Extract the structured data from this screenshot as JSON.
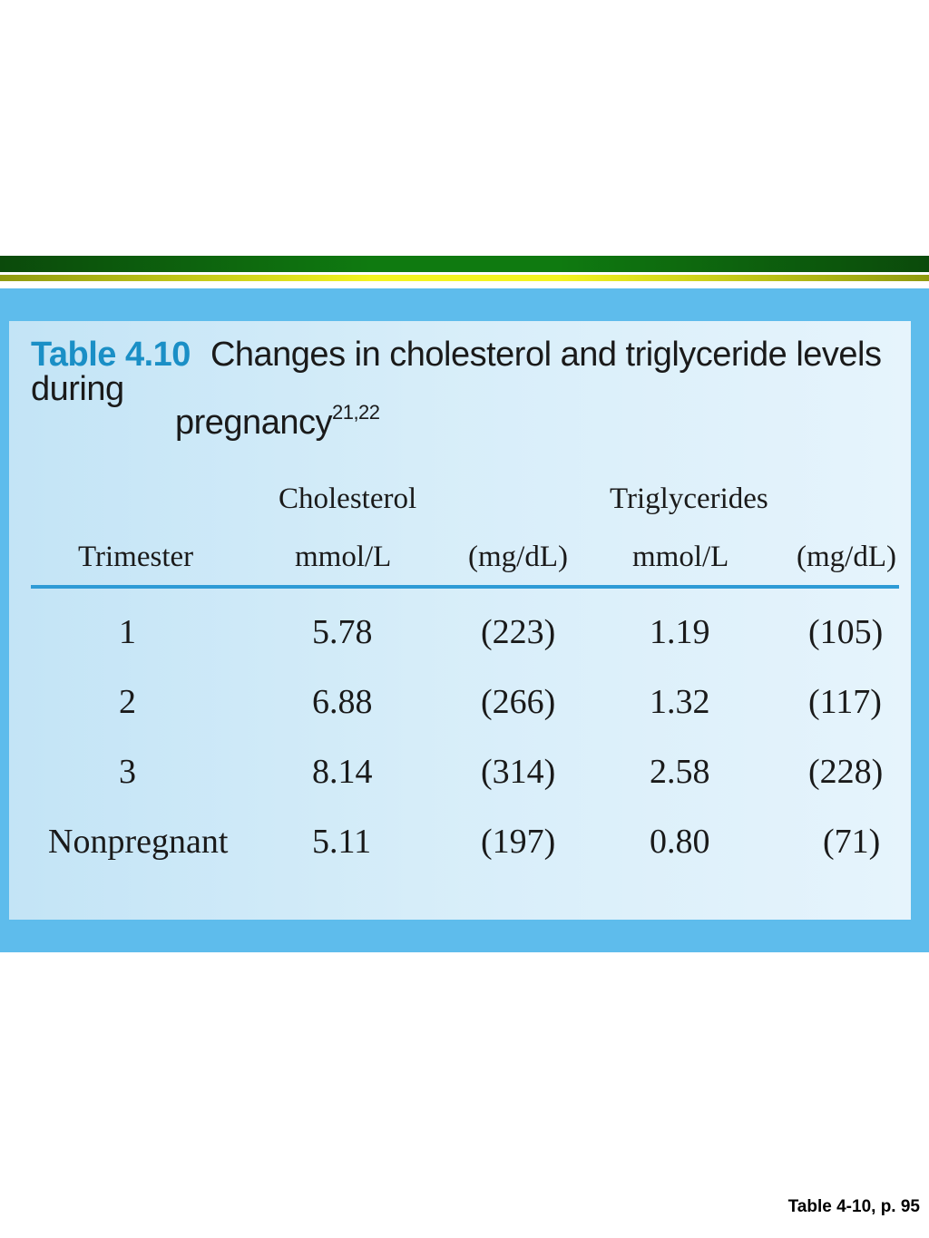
{
  "caption": {
    "label": "Table 4.10",
    "title_line1": "Changes in cholesterol and triglyceride levels during",
    "title_line2": "pregnancy",
    "superscript": "21,22"
  },
  "header": {
    "group1": "Cholesterol",
    "group2": "Triglycerides",
    "col_trimester": "Trimester",
    "col_chol_mmol": "mmol/L",
    "col_chol_mg": "(mg/dL)",
    "col_tg_mmol": "mmol/L",
    "col_tg_mg": "(mg/dL)"
  },
  "rows": [
    {
      "trimester": "1",
      "chol_mmol": "5.78",
      "chol_mg": "(223)",
      "tg_mmol": "1.19",
      "tg_mg": "(105)"
    },
    {
      "trimester": "2",
      "chol_mmol": "6.88",
      "chol_mg": "(266)",
      "tg_mmol": "1.32",
      "tg_mg": "(117)"
    },
    {
      "trimester": "3",
      "chol_mmol": "8.14",
      "chol_mg": "(314)",
      "tg_mmol": "2.58",
      "tg_mg": "(228)"
    },
    {
      "trimester": "Nonpregnant",
      "chol_mmol": "5.11",
      "chol_mg": "(197)",
      "tg_mmol": "0.80",
      "tg_mg": "(71)"
    }
  ],
  "footnote": "Table 4-10, p. 95",
  "colors": {
    "header_green": "#0f7a10",
    "header_yellow": "#f4f420",
    "panel_blue": "#5ebcec",
    "label_blue": "#1a8fc6",
    "rule_blue": "#2e9bd6"
  }
}
